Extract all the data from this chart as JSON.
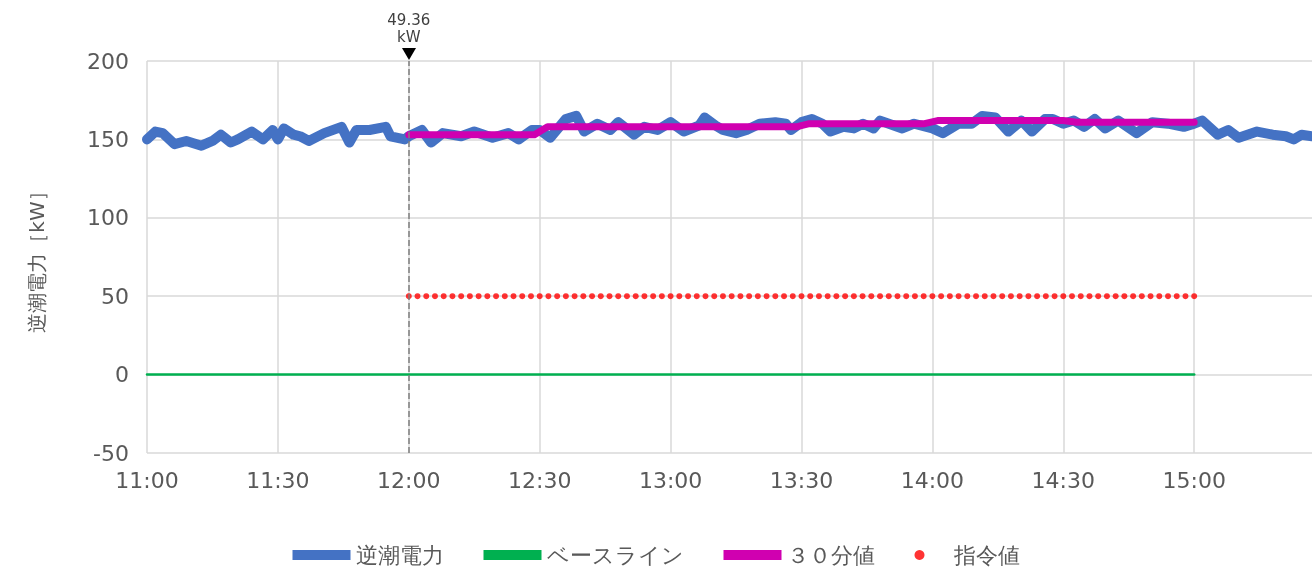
{
  "chart_data": {
    "type": "line",
    "ylabel": "逆潮電力［kW］",
    "xlim": [
      11,
      15.45
    ],
    "ylim": [
      -50,
      200
    ],
    "xticks": [
      {
        "value": 11,
        "label": "11:00"
      },
      {
        "value": 11.5,
        "label": "11:30"
      },
      {
        "value": 12,
        "label": "12:00"
      },
      {
        "value": 12.5,
        "label": "12:30"
      },
      {
        "value": 13,
        "label": "13:00"
      },
      {
        "value": 13.5,
        "label": "13:30"
      },
      {
        "value": 14,
        "label": "14:00"
      },
      {
        "value": 14.5,
        "label": "14:30"
      },
      {
        "value": 15,
        "label": "15:00"
      }
    ],
    "yticks": [
      -50,
      0,
      50,
      100,
      150,
      200
    ],
    "grid": true,
    "legend": "bottom",
    "line_style": "solid",
    "ref_lines": [
      {
        "axis": "x",
        "value": 12,
        "label": "49.36 kW",
        "color": "#7f7f7f",
        "line_style": "dashed"
      }
    ],
    "series": [
      {
        "name": "逆潮電力",
        "color": "#4472c4",
        "marker": "none",
        "x": [
          11.0,
          11.032,
          11.06,
          11.105,
          11.15,
          11.208,
          11.25,
          11.282,
          11.32,
          11.347,
          11.4,
          11.443,
          11.48,
          11.5,
          11.523,
          11.56,
          11.585,
          11.618,
          11.677,
          11.743,
          11.773,
          11.8,
          11.85,
          11.912,
          11.93,
          11.985,
          12.0,
          12.05,
          12.085,
          12.13,
          12.2,
          12.25,
          12.32,
          12.38,
          12.42,
          12.47,
          12.5,
          12.54,
          12.6,
          12.64,
          12.67,
          12.72,
          12.77,
          12.8,
          12.86,
          12.9,
          12.95,
          13.0,
          13.05,
          13.11,
          13.13,
          13.17,
          13.2,
          13.25,
          13.29,
          13.34,
          13.4,
          13.44,
          13.46,
          13.5,
          13.54,
          13.58,
          13.61,
          13.66,
          13.7,
          13.735,
          13.775,
          13.8,
          13.85,
          13.885,
          13.93,
          14.0,
          14.04,
          14.1,
          14.15,
          14.19,
          14.24,
          14.29,
          14.34,
          14.38,
          14.43,
          14.46,
          14.5,
          14.54,
          14.58,
          14.62,
          14.66,
          14.71,
          14.78,
          14.84,
          14.9,
          14.96,
          15.0,
          15.03,
          15.09,
          15.13,
          15.17,
          15.24,
          15.3,
          15.35,
          15.38,
          15.41,
          15.45
        ],
        "values": [
          150,
          155,
          154,
          147,
          149,
          146,
          149,
          153,
          148,
          150,
          155,
          150,
          156,
          150,
          157,
          153,
          152,
          149,
          154,
          158,
          148,
          156,
          156,
          158,
          152,
          150,
          152,
          156,
          148,
          154,
          152,
          155,
          151,
          154,
          150,
          156,
          156,
          151,
          163,
          165,
          155,
          160,
          156,
          161,
          153,
          158,
          156,
          161,
          155,
          159,
          164,
          159,
          156,
          154,
          156,
          160,
          161,
          160,
          156,
          161,
          163,
          160,
          155,
          158,
          157,
          160,
          157,
          162,
          159,
          157,
          160,
          157,
          154,
          160,
          160,
          165,
          164,
          155,
          162,
          155,
          163,
          163,
          160,
          162,
          158,
          163,
          157,
          162,
          154,
          161,
          160,
          158,
          160,
          162,
          153,
          156,
          151,
          155,
          153,
          152,
          150,
          153,
          152
        ]
      },
      {
        "name": "ベースライン",
        "color": "#00b050",
        "marker": "none",
        "x": [
          11,
          15
        ],
        "values": [
          0,
          0
        ]
      },
      {
        "name": "３０分値",
        "color": "#d000b0",
        "marker": "none",
        "x": [
          12,
          12.48,
          12.53,
          13.48,
          13.53,
          13.97,
          14.02,
          14.5,
          14.55,
          15
        ],
        "values": [
          153,
          153,
          158,
          158,
          160,
          160,
          162,
          162,
          161,
          161
        ]
      },
      {
        "name": "指令値",
        "type": "scatter",
        "color": "#ff0000",
        "marker": "circle",
        "x": [
          12,
          12.0333,
          12.0667,
          12.1,
          12.1333,
          12.1667,
          12.2,
          12.2333,
          12.2667,
          12.3,
          12.3333,
          12.3667,
          12.4,
          12.4333,
          12.4667,
          12.5,
          12.5333,
          12.5667,
          12.6,
          12.6333,
          12.6667,
          12.7,
          12.7333,
          12.7667,
          12.8,
          12.8333,
          12.8667,
          12.9,
          12.9333,
          12.9667,
          13,
          13.0333,
          13.0667,
          13.1,
          13.1333,
          13.1667,
          13.2,
          13.2333,
          13.2667,
          13.3,
          13.3333,
          13.3667,
          13.4,
          13.4333,
          13.4667,
          13.5,
          13.5333,
          13.5667,
          13.6,
          13.6333,
          13.6667,
          13.7,
          13.7333,
          13.7667,
          13.8,
          13.8333,
          13.8667,
          13.9,
          13.9333,
          13.9667,
          14,
          14.0333,
          14.0667,
          14.1,
          14.1333,
          14.1667,
          14.2,
          14.2333,
          14.2667,
          14.3,
          14.3333,
          14.3667,
          14.4,
          14.4333,
          14.4667,
          14.5,
          14.5333,
          14.5667,
          14.6,
          14.6333,
          14.6667,
          14.7,
          14.7333,
          14.7667,
          14.8,
          14.8333,
          14.8667,
          14.9,
          14.9333,
          14.9667,
          15
        ],
        "values": [
          50,
          50,
          50,
          50,
          50,
          50,
          50,
          50,
          50,
          50,
          50,
          50,
          50,
          50,
          50,
          50,
          50,
          50,
          50,
          50,
          50,
          50,
          50,
          50,
          50,
          50,
          50,
          50,
          50,
          50,
          50,
          50,
          50,
          50,
          50,
          50,
          50,
          50,
          50,
          50,
          50,
          50,
          50,
          50,
          50,
          50,
          50,
          50,
          50,
          50,
          50,
          50,
          50,
          50,
          50,
          50,
          50,
          50,
          50,
          50,
          50,
          50,
          50,
          50,
          50,
          50,
          50,
          50,
          50,
          50,
          50,
          50,
          50,
          50,
          50,
          50,
          50,
          50,
          50,
          50,
          50,
          50,
          50,
          50,
          50,
          50,
          50,
          50,
          50,
          50,
          50
        ]
      }
    ]
  }
}
